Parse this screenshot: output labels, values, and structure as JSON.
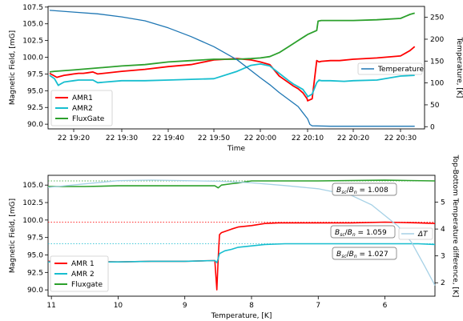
{
  "chart_data": [
    {
      "type": "line",
      "xlabel": "Time",
      "ylabel": "Magnetic Field, [mG]",
      "y2label": "Temperature, [K]",
      "x_ticks": [
        "22 19:20",
        "22 19:30",
        "22 19:40",
        "22 19:50",
        "22 20:00",
        "22 20:10",
        "22 20:20",
        "22 20:30"
      ],
      "xlim_minutes": [
        19.2,
        34
      ],
      "ylim": [
        89.3,
        107.6
      ],
      "y_ticks": [
        "90.0",
        "92.5",
        "95.0",
        "97.5",
        "100.0",
        "102.5",
        "105.0",
        "107.5"
      ],
      "y2lim": [
        -5,
        275
      ],
      "y2_ticks": [
        "0",
        "50",
        "100",
        "150",
        "200",
        "250"
      ],
      "legend_left": [
        "AMR1",
        "AMR2",
        "FluxGate"
      ],
      "legend_right": [
        "Temperature"
      ],
      "legend_left_position": "lower-left",
      "legend_right_position": "center-right",
      "series": [
        {
          "name": "AMR1",
          "color": "#ff0000",
          "axis": "left",
          "x": [
            15,
            16.5,
            17,
            18,
            19,
            20,
            21,
            22,
            23,
            24,
            25,
            30,
            35,
            40,
            45,
            50,
            55,
            58,
            60,
            62,
            64,
            66,
            67,
            68,
            69,
            69.9,
            70,
            71,
            72,
            72.5,
            73,
            75,
            77,
            80,
            85,
            90,
            92,
            93
          ],
          "y": [
            97.6,
            97.0,
            97.1,
            97.3,
            97.4,
            97.5,
            97.6,
            97.6,
            97.7,
            97.8,
            97.5,
            97.9,
            98.2,
            98.6,
            98.9,
            99.6,
            99.8,
            99.6,
            99.3,
            98.9,
            97.2,
            96.2,
            95.7,
            95.3,
            94.7,
            93.8,
            93.5,
            93.8,
            99.5,
            99.3,
            99.4,
            99.5,
            99.5,
            99.7,
            99.9,
            100.2,
            101.0,
            101.6
          ]
        },
        {
          "name": "AMR2",
          "color": "#17becf",
          "axis": "left",
          "x": [
            15,
            16,
            16.8,
            17,
            18,
            19,
            20,
            21,
            22,
            23,
            24,
            25,
            30,
            35,
            40,
            45,
            50,
            55,
            58,
            60,
            62,
            64,
            66,
            67,
            68,
            69,
            69.9,
            70,
            71,
            72,
            72.5,
            73,
            75,
            78,
            80,
            85,
            90,
            93
          ],
          "y": [
            97.3,
            96.8,
            95.8,
            95.9,
            96.3,
            96.4,
            96.5,
            96.6,
            96.6,
            96.6,
            96.6,
            96.2,
            96.5,
            96.5,
            96.6,
            96.7,
            96.8,
            97.9,
            98.8,
            99.0,
            98.7,
            97.6,
            96.5,
            96.0,
            95.6,
            95.2,
            94.3,
            94.1,
            94.5,
            96.2,
            96.6,
            96.5,
            96.5,
            96.4,
            96.5,
            96.6,
            97.2,
            97.3
          ]
        },
        {
          "name": "FluxGate",
          "color": "#2ca02c",
          "axis": "left",
          "x": [
            15,
            16,
            20,
            25,
            30,
            35,
            40,
            45,
            50,
            55,
            58,
            60,
            62,
            64,
            66,
            68,
            70,
            72,
            72.3,
            73,
            80,
            85,
            90,
            92,
            93
          ],
          "y": [
            97.8,
            97.9,
            98.1,
            98.4,
            98.7,
            98.9,
            99.3,
            99.5,
            99.7,
            99.7,
            99.8,
            99.9,
            100.1,
            100.7,
            101.6,
            102.5,
            103.4,
            104.0,
            105.4,
            105.5,
            105.5,
            105.6,
            105.8,
            106.4,
            106.6
          ]
        },
        {
          "name": "Temperature",
          "color": "#1f77b4",
          "axis": "right",
          "x": [
            15,
            20,
            25,
            30,
            35,
            40,
            45,
            50,
            55,
            60,
            62,
            64,
            66,
            68,
            69,
            70,
            70.5,
            71,
            75,
            80,
            90,
            93
          ],
          "y": [
            266,
            262,
            258,
            251,
            242,
            226,
            206,
            183,
            153,
            112,
            96,
            78,
            62,
            46,
            32,
            18,
            5,
            2,
            1,
            1,
            1,
            1
          ]
        }
      ]
    },
    {
      "type": "line",
      "xlabel": "Temperature, [K]",
      "ylabel": "Magnetic Field, [mG]",
      "y2label": "Top-Bottom Temperature difference, [K]",
      "x_ticks": [
        "11",
        "10",
        "9",
        "8",
        "7",
        "6"
      ],
      "xlim": [
        11.05,
        5.25
      ],
      "x_reversed": true,
      "ylim": [
        89.1,
        106.4
      ],
      "y_ticks": [
        "90.0",
        "92.5",
        "95.0",
        "97.5",
        "100.0",
        "102.5",
        "105.0"
      ],
      "y2lim": [
        1.5,
        6.0
      ],
      "y2_ticks": [
        "2",
        "3",
        "4",
        "5"
      ],
      "legend": [
        "AMR 1",
        "AMR 2",
        "Fluxgate"
      ],
      "legend_position": "lower-left",
      "legend_right": [
        "ΔT"
      ],
      "annotations": [
        {
          "label": "1.008",
          "at_x": 7.5,
          "at_y": 104.9
        },
        {
          "label": "1.059",
          "at_x": 7.5,
          "at_y": 99.2
        },
        {
          "label": "1.027",
          "at_x": 7.5,
          "at_y": 96.0
        }
      ],
      "reference_lines": [
        {
          "y": 105.6,
          "color": "#2ca02c"
        },
        {
          "y": 99.7,
          "color": "#ff0000"
        },
        {
          "y": 96.6,
          "color": "#17becf"
        }
      ],
      "series": [
        {
          "name": "AMR 1",
          "color": "#ff0000",
          "axis": "left",
          "x": [
            11.05,
            10.5,
            10.0,
            9.5,
            9.0,
            8.55,
            8.52,
            8.5,
            8.48,
            8.45,
            8.3,
            8.2,
            8.0,
            7.8,
            7.6,
            7.0,
            6.5,
            6.0,
            5.5,
            5.25
          ],
          "y": [
            94.1,
            94.1,
            94.0,
            94.1,
            94.1,
            94.2,
            90.0,
            94.5,
            97.9,
            98.2,
            98.7,
            99.0,
            99.2,
            99.5,
            99.6,
            99.6,
            99.6,
            99.7,
            99.6,
            99.5
          ]
        },
        {
          "name": "AMR 2",
          "color": "#17becf",
          "axis": "left",
          "x": [
            11.05,
            10.5,
            10.0,
            9.5,
            9.0,
            8.55,
            8.52,
            8.5,
            8.48,
            8.4,
            8.3,
            8.2,
            8.0,
            7.8,
            7.5,
            7.0,
            6.5,
            6.0,
            5.5,
            5.25
          ],
          "y": [
            94.0,
            94.0,
            94.0,
            94.1,
            94.1,
            94.2,
            93.9,
            94.5,
            95.2,
            95.6,
            95.8,
            96.1,
            96.3,
            96.5,
            96.6,
            96.6,
            96.6,
            96.6,
            96.6,
            96.5
          ]
        },
        {
          "name": "Fluxgate",
          "color": "#2ca02c",
          "axis": "left",
          "x": [
            11.05,
            10.5,
            10.0,
            9.5,
            9.0,
            8.55,
            8.5,
            8.45,
            8.3,
            8.2,
            8.0,
            7.8,
            7.0,
            6.0,
            5.25
          ],
          "y": [
            104.8,
            104.8,
            104.9,
            104.9,
            104.9,
            104.9,
            104.6,
            105.0,
            105.2,
            105.3,
            105.6,
            105.6,
            105.6,
            105.7,
            105.6
          ]
        },
        {
          "name": "ΔT",
          "color": "#a6d1e6",
          "axis": "right",
          "x": [
            11.05,
            10.5,
            10.0,
            9.5,
            9.0,
            8.5,
            8.0,
            7.5,
            7.0,
            6.5,
            6.2,
            6.0,
            5.8,
            5.6,
            5.4,
            5.25
          ],
          "y": [
            5.55,
            5.68,
            5.8,
            5.82,
            5.8,
            5.78,
            5.72,
            5.62,
            5.5,
            5.25,
            4.9,
            4.5,
            4.1,
            3.5,
            2.6,
            1.9
          ]
        }
      ]
    }
  ]
}
